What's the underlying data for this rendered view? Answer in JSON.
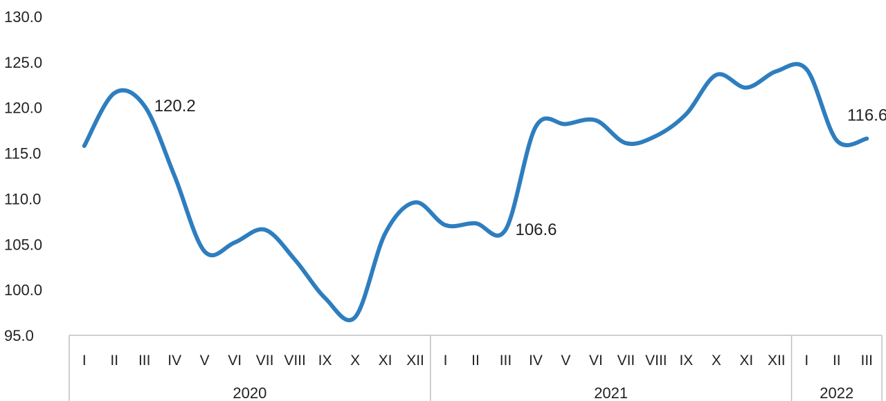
{
  "chart_data": {
    "type": "line",
    "title": "",
    "xlabel": "",
    "ylabel": "",
    "ylim": [
      95,
      130
    ],
    "y_ticks": [
      "95.0",
      "100.0",
      "105.0",
      "110.0",
      "115.0",
      "120.0",
      "125.0",
      "130.0"
    ],
    "grid": false,
    "legend": "none",
    "line_color": "#2E7EBF",
    "groups": [
      {
        "year": "2020",
        "months": [
          "I",
          "II",
          "III",
          "IV",
          "V",
          "VI",
          "VII",
          "VIII",
          "IX",
          "X",
          "XI",
          "XII"
        ]
      },
      {
        "year": "2021",
        "months": [
          "I",
          "II",
          "III",
          "IV",
          "V",
          "VI",
          "VII",
          "VIII",
          "IX",
          "X",
          "XI",
          "XII"
        ]
      },
      {
        "year": "2022",
        "months": [
          "I",
          "II",
          "III"
        ]
      }
    ],
    "series": [
      {
        "values": [
          115.8,
          121.6,
          120.2,
          112.5,
          104.2,
          105.2,
          106.6,
          103.3,
          99.1,
          97.0,
          106.2,
          109.6,
          107.1,
          107.3,
          106.6,
          117.9,
          118.2,
          118.6,
          116.1,
          116.9,
          119.3,
          123.6,
          122.2,
          124.0,
          124.2,
          116.4,
          116.6
        ],
        "labels": {
          "2": "120.2",
          "14": "106.6",
          "26": "116.6"
        }
      }
    ]
  }
}
